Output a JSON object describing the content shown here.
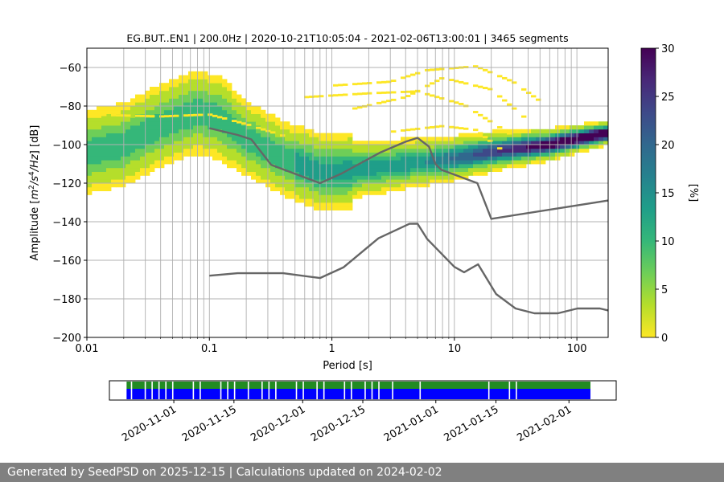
{
  "chart_data": [
    {
      "type": "heatmap",
      "title": "EG.BUT..EN1 | 200.0Hz | 2020-10-21T10:05:04 - 2021-02-06T13:00:01 | 3465 segments",
      "xlabel": "Period [s]",
      "ylabel_parts": [
        "Amplitude [",
        "m",
        "2",
        "/",
        "s",
        "4",
        "/",
        "Hz",
        "] [dB]"
      ],
      "xscale": "log",
      "xlim": [
        0.01,
        180
      ],
      "ylim": [
        -200,
        -50
      ],
      "grid": true,
      "xticks": [
        {
          "v": 0.01,
          "label": "0.01"
        },
        {
          "v": 0.1,
          "label": "0.1"
        },
        {
          "v": 1,
          "label": "1"
        },
        {
          "v": 10,
          "label": "10"
        },
        {
          "v": 100,
          "label": "100"
        }
      ],
      "yticks": [
        {
          "v": -60,
          "label": "−60"
        },
        {
          "v": -80,
          "label": "−80"
        },
        {
          "v": -100,
          "label": "−100"
        },
        {
          "v": -120,
          "label": "−120"
        },
        {
          "v": -140,
          "label": "−140"
        },
        {
          "v": -160,
          "label": "−160"
        },
        {
          "v": -180,
          "label": "−180"
        },
        {
          "v": -200,
          "label": "−200"
        }
      ],
      "colorbar": {
        "label": "[%]",
        "range": [
          0,
          30
        ],
        "ticks": [
          {
            "v": 0,
            "label": "0"
          },
          {
            "v": 5,
            "label": "5"
          },
          {
            "v": 10,
            "label": "10"
          },
          {
            "v": 15,
            "label": "15"
          },
          {
            "v": 20,
            "label": "20"
          },
          {
            "v": 25,
            "label": "25"
          },
          {
            "v": 30,
            "label": "30"
          }
        ],
        "colors": [
          "#fde725",
          "#b5de2b",
          "#6ece58",
          "#35b779",
          "#1f9e89",
          "#26828e",
          "#31688e",
          "#3e4989",
          "#482878",
          "#440154"
        ]
      },
      "mode_curve": [
        [
          0.01,
          -104
        ],
        [
          0.02,
          -100
        ],
        [
          0.04,
          -90
        ],
        [
          0.08,
          -83
        ],
        [
          0.12,
          -86
        ],
        [
          0.2,
          -97
        ],
        [
          0.4,
          -107
        ],
        [
          0.8,
          -114
        ],
        [
          1.2,
          -114
        ],
        [
          2,
          -112
        ],
        [
          4,
          -110
        ],
        [
          8,
          -108
        ],
        [
          15,
          -105
        ],
        [
          30,
          -102
        ],
        [
          60,
          -100
        ],
        [
          120,
          -96
        ],
        [
          180,
          -94
        ]
      ],
      "high_noise_model": [
        [
          0.1,
          -91.5
        ],
        [
          0.17,
          -95
        ],
        [
          0.22,
          -97.3
        ],
        [
          0.32,
          -110.5
        ],
        [
          0.8,
          -120
        ],
        [
          1.2,
          -115
        ],
        [
          2.5,
          -104
        ],
        [
          4,
          -98.5
        ],
        [
          5,
          -96.5
        ],
        [
          6.2,
          -101
        ],
        [
          7,
          -110
        ],
        [
          7.8,
          -113
        ],
        [
          15.4,
          -120
        ],
        [
          20,
          -138.5
        ],
        [
          180,
          -129
        ]
      ],
      "low_noise_model": [
        [
          0.1,
          -168
        ],
        [
          0.17,
          -166.7
        ],
        [
          0.4,
          -166.7
        ],
        [
          0.8,
          -169.2
        ],
        [
          1.24,
          -163.7
        ],
        [
          2.4,
          -148.6
        ],
        [
          4.3,
          -141.1
        ],
        [
          5,
          -141
        ],
        [
          6,
          -149
        ],
        [
          10,
          -163.4
        ],
        [
          12,
          -166.2
        ],
        [
          15.6,
          -162.1
        ],
        [
          21.9,
          -177.5
        ],
        [
          31.6,
          -185
        ],
        [
          45,
          -187.5
        ],
        [
          70,
          -187.5
        ],
        [
          101,
          -185
        ],
        [
          154,
          -185
        ],
        [
          180,
          -186
        ]
      ],
      "sparse_bands": [
        {
          "name": "upper-a",
          "points": [
            [
              1,
              -70
            ],
            [
              3,
              -68
            ],
            [
              6,
              -62
            ],
            [
              15,
              -60
            ],
            [
              30,
              -68
            ],
            [
              50,
              -78
            ]
          ]
        },
        {
          "name": "upper-b",
          "points": [
            [
              1.5,
              -82
            ],
            [
              4,
              -76
            ],
            [
              8,
              -66
            ],
            [
              20,
              -72
            ],
            [
              40,
              -88
            ]
          ]
        },
        {
          "name": "upper-c",
          "points": [
            [
              0.6,
              -76
            ],
            [
              2,
              -74
            ],
            [
              5,
              -73
            ],
            [
              12,
              -80
            ],
            [
              30,
              -96
            ]
          ]
        },
        {
          "name": "upper-d",
          "points": [
            [
              0.01,
              -85
            ],
            [
              0.04,
              -86
            ],
            [
              0.1,
              -85
            ],
            [
              0.2,
              -90
            ],
            [
              0.4,
              -96
            ]
          ]
        },
        {
          "name": "upper-e",
          "points": [
            [
              3,
              -94
            ],
            [
              8,
              -91
            ],
            [
              15,
              -93
            ],
            [
              25,
              -104
            ]
          ]
        }
      ]
    },
    {
      "type": "timeline",
      "xticks": [
        "2020-11-01",
        "2020-11-15",
        "2020-12-01",
        "2020-12-15",
        "2021-01-01",
        "2021-01-15",
        "2021-02-01"
      ],
      "start": "2020-10-21",
      "end": "2021-02-06",
      "axis_start": "2020-10-17",
      "axis_end": "2021-02-12",
      "colors": {
        "top": "#228b22",
        "bottom": "#0000ff"
      }
    }
  ],
  "footer": {
    "text": "Generated by SeedPSD on 2025-12-15 | Calculations updated on 2024-02-02"
  }
}
